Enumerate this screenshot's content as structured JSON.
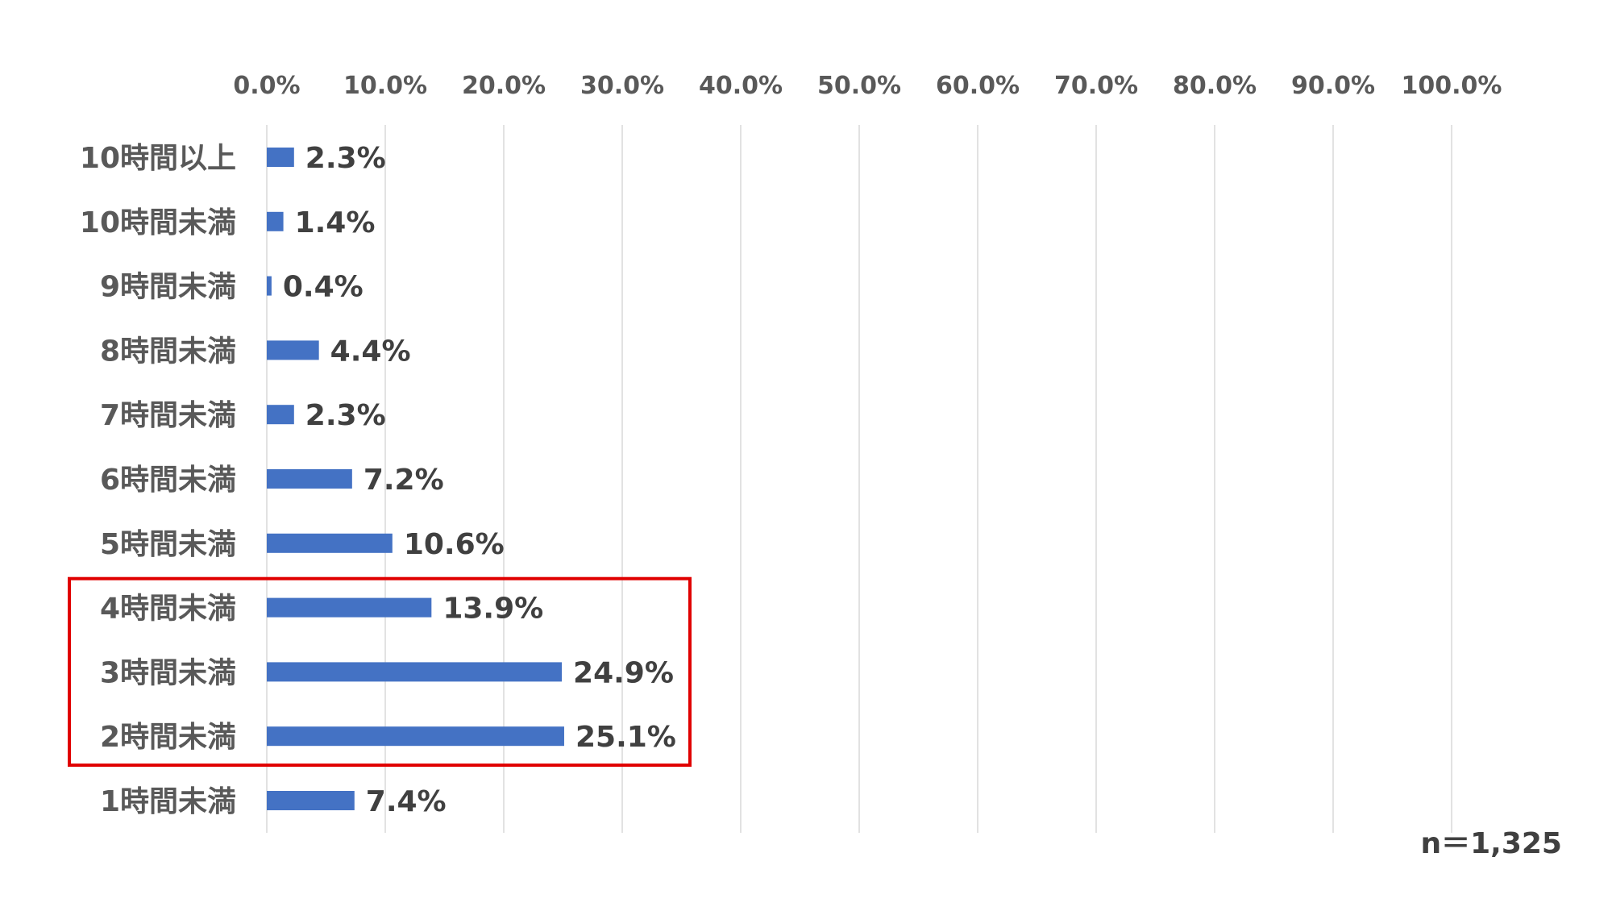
{
  "chart_data": {
    "type": "bar",
    "orientation": "horizontal",
    "categories": [
      "10時間以上",
      "10時間未満",
      "9時間未満",
      "8時間未満",
      "7時間未満",
      "6時間未満",
      "5時間未満",
      "4時間未満",
      "3時間未満",
      "2時間未満",
      "1時間未満"
    ],
    "values": [
      2.3,
      1.4,
      0.4,
      4.4,
      2.3,
      7.2,
      10.6,
      13.9,
      24.9,
      25.1,
      7.4
    ],
    "value_labels": [
      "2.3%",
      "1.4%",
      "0.4%",
      "4.4%",
      "2.3%",
      "7.2%",
      "10.6%",
      "13.9%",
      "24.9%",
      "25.1%",
      "7.4%"
    ],
    "x_ticks": [
      "0.0%",
      "10.0%",
      "20.0%",
      "30.0%",
      "40.0%",
      "50.0%",
      "60.0%",
      "70.0%",
      "80.0%",
      "90.0%",
      "100.0%"
    ],
    "xlim": [
      0,
      100
    ],
    "x_axis_position": "top",
    "grid": true,
    "bar_color": "#4472C4",
    "grid_color": "#D9D9D9",
    "highlight": {
      "categories": [
        "4時間未満",
        "3時間未満",
        "2時間未満"
      ],
      "color": "#E00000"
    },
    "note": "n＝1,325"
  }
}
